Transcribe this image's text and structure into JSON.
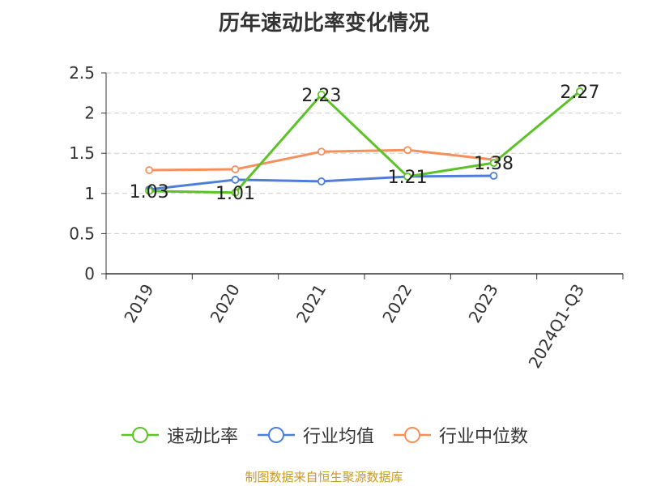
{
  "chart_data": {
    "type": "line",
    "title": "历年速动比率变化情况",
    "categories": [
      "2019",
      "2020",
      "2021",
      "2022",
      "2023",
      "2024Q1-Q3"
    ],
    "y_ticks": [
      "0",
      "0.5",
      "1",
      "1.5",
      "2",
      "2.5"
    ],
    "ylim": [
      0,
      2.5
    ],
    "grid": true,
    "legend_position": "bottom",
    "series": [
      {
        "name": "速动比率",
        "color": "#5dc228",
        "values": [
          1.03,
          1.01,
          2.23,
          1.21,
          1.38,
          2.27
        ],
        "labels": [
          "1.03",
          "1.01",
          "2.23",
          "1.21",
          "1.38",
          "2.27"
        ]
      },
      {
        "name": "行业均值",
        "color": "#4e7fd8",
        "values": [
          1.05,
          1.17,
          1.15,
          1.21,
          1.22,
          null
        ]
      },
      {
        "name": "行业中位数",
        "color": "#f5905c",
        "values": [
          1.29,
          1.3,
          1.52,
          1.54,
          1.42,
          null
        ]
      }
    ]
  },
  "source": {
    "text": "制图数据来自恒生聚源数据库",
    "color": "#c59a2a"
  }
}
